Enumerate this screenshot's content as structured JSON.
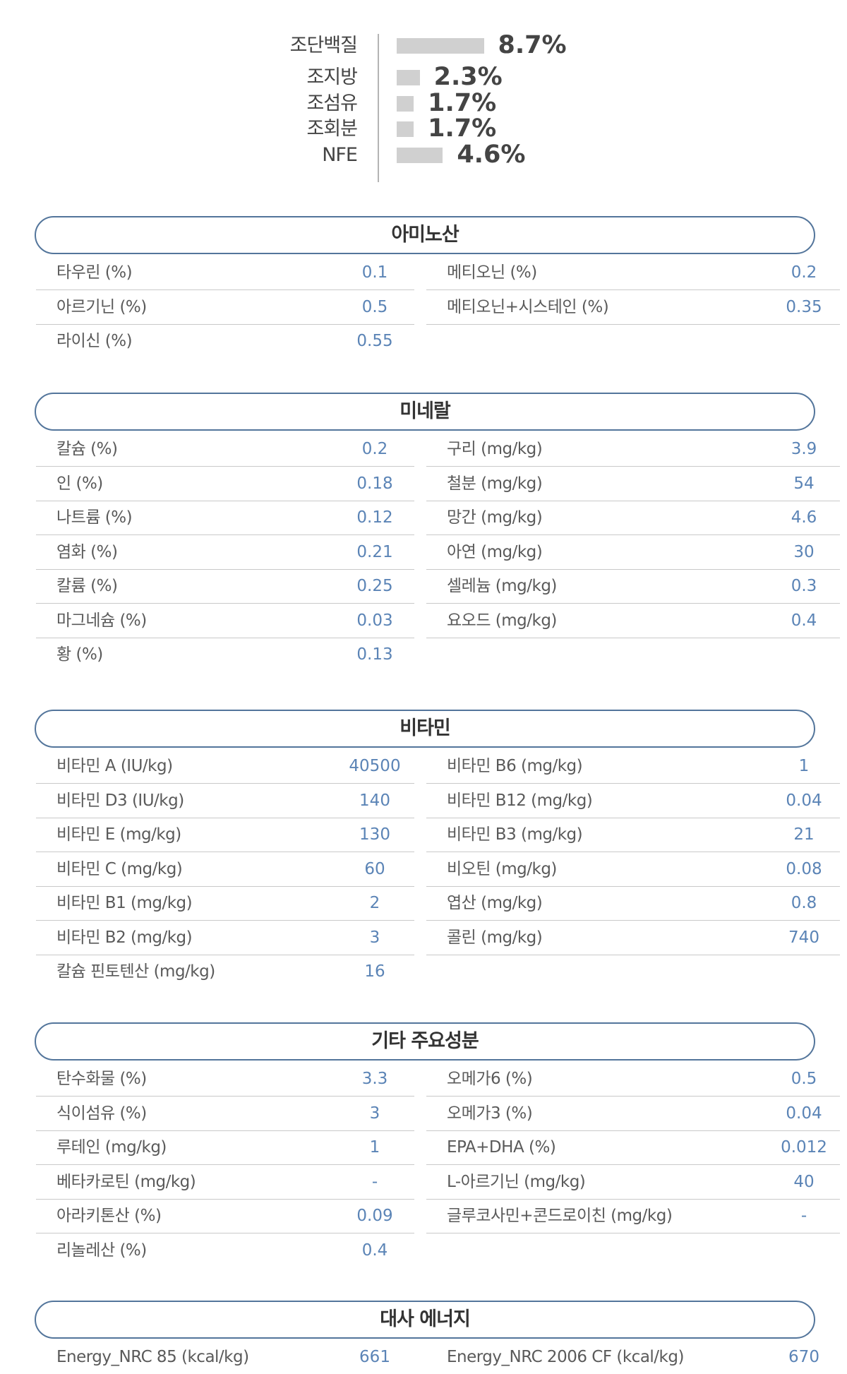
{
  "proximate": [
    {
      "label": "조단백질",
      "value": "8.7%",
      "pct": 8.7
    },
    {
      "label": "조지방",
      "value": "2.3%",
      "pct": 2.3
    },
    {
      "label": "조섬유",
      "value": "1.7%",
      "pct": 1.7
    },
    {
      "label": "조회분",
      "value": "1.7%",
      "pct": 1.7
    },
    {
      "label": "NFE",
      "value": "4.6%",
      "pct": 4.6
    }
  ],
  "colors": {
    "accent": "#53759b",
    "value_text": "#5b84b6",
    "bar": "#d0d0d0",
    "divider": "#c9c9c9"
  },
  "sections": [
    {
      "title": "아미노산",
      "left": [
        {
          "label": "타우린 (%)",
          "value": "0.1"
        },
        {
          "label": "아르기닌 (%)",
          "value": "0.5"
        },
        {
          "label": "라이신 (%)",
          "value": "0.55"
        }
      ],
      "right": [
        {
          "label": "메티오닌 (%)",
          "value": "0.2"
        },
        {
          "label": "메티오닌+시스테인 (%)",
          "value": "0.35"
        }
      ]
    },
    {
      "title": "미네랄",
      "left": [
        {
          "label": "칼슘 (%)",
          "value": "0.2"
        },
        {
          "label": "인 (%)",
          "value": "0.18"
        },
        {
          "label": "나트륨 (%)",
          "value": "0.12"
        },
        {
          "label": "염화 (%)",
          "value": "0.21"
        },
        {
          "label": "칼륨 (%)",
          "value": "0.25"
        },
        {
          "label": "마그네슘 (%)",
          "value": "0.03"
        },
        {
          "label": "황 (%)",
          "value": "0.13"
        }
      ],
      "right": [
        {
          "label": "구리 (mg/kg)",
          "value": "3.9"
        },
        {
          "label": "철분 (mg/kg)",
          "value": "54"
        },
        {
          "label": "망간 (mg/kg)",
          "value": "4.6"
        },
        {
          "label": "아연 (mg/kg)",
          "value": "30"
        },
        {
          "label": "셀레늄 (mg/kg)",
          "value": "0.3"
        },
        {
          "label": "요오드 (mg/kg)",
          "value": "0.4"
        }
      ]
    },
    {
      "title": "비타민",
      "left": [
        {
          "label": "비타민 A (IU/kg)",
          "value": "40500"
        },
        {
          "label": "비타민 D3 (IU/kg)",
          "value": "140"
        },
        {
          "label": "비타민 E (mg/kg)",
          "value": "130"
        },
        {
          "label": "비타민 C (mg/kg)",
          "value": "60"
        },
        {
          "label": "비타민 B1 (mg/kg)",
          "value": "2"
        },
        {
          "label": "비타민 B2 (mg/kg)",
          "value": "3"
        },
        {
          "label": "칼슘 핀토텐산 (mg/kg)",
          "value": "16"
        }
      ],
      "right": [
        {
          "label": "비타민 B6 (mg/kg)",
          "value": "1"
        },
        {
          "label": "비타민 B12 (mg/kg)",
          "value": "0.04"
        },
        {
          "label": "비타민 B3 (mg/kg)",
          "value": "21"
        },
        {
          "label": "비오틴 (mg/kg)",
          "value": "0.08"
        },
        {
          "label": "엽산 (mg/kg)",
          "value": "0.8"
        },
        {
          "label": "콜린 (mg/kg)",
          "value": "740"
        }
      ]
    },
    {
      "title": "기타 주요성분",
      "left": [
        {
          "label": "탄수화물 (%)",
          "value": "3.3"
        },
        {
          "label": "식이섬유 (%)",
          "value": "3"
        },
        {
          "label": "루테인 (mg/kg)",
          "value": "1"
        },
        {
          "label": "베타카로틴 (mg/kg)",
          "value": "-"
        },
        {
          "label": "아라키톤산 (%)",
          "value": "0.09"
        },
        {
          "label": "리놀레산 (%)",
          "value": "0.4"
        }
      ],
      "right": [
        {
          "label": "오메가6 (%)",
          "value": "0.5"
        },
        {
          "label": "오메가3 (%)",
          "value": "0.04"
        },
        {
          "label": "EPA+DHA (%)",
          "value": "0.012"
        },
        {
          "label": "L-아르기닌 (mg/kg)",
          "value": "40"
        },
        {
          "label": "글루코사민+콘드로이친 (mg/kg)",
          "value": "-"
        }
      ]
    },
    {
      "title": "대사 에너지",
      "left": [
        {
          "label": "Energy_NRC 85 (kcal/kg)",
          "value": "661"
        }
      ],
      "right": [
        {
          "label": "Energy_NRC 2006 CF (kcal/kg)",
          "value": "670"
        }
      ]
    }
  ]
}
